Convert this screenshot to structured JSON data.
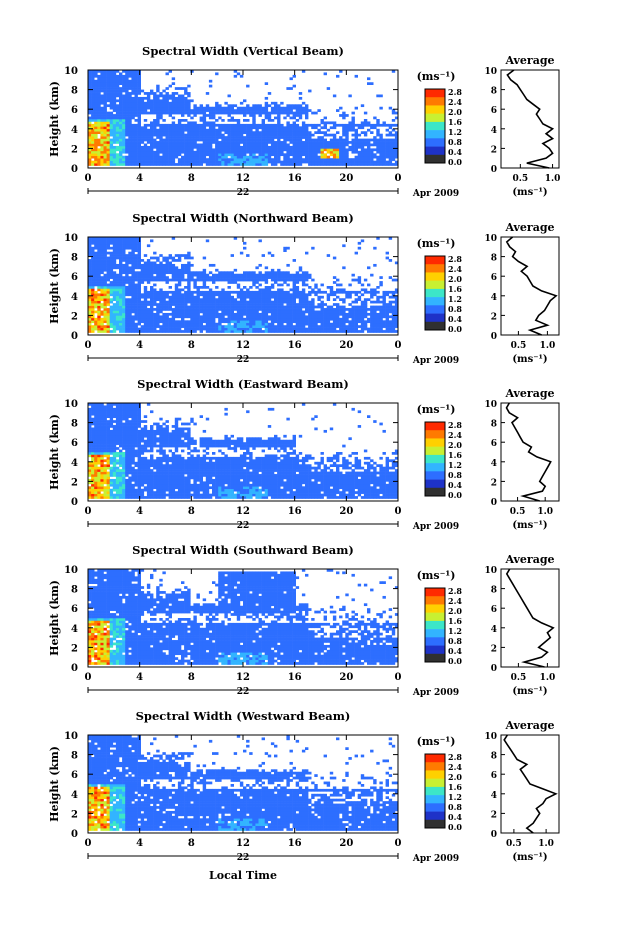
{
  "figure": {
    "xlabel": "Local Time",
    "date_suffix": "Apr 2009",
    "colorbar_unit": "(ms⁻¹)",
    "colorbar_ticks": [
      "2.8",
      "2.4",
      "2.0",
      "1.6",
      "1.2",
      "0.8",
      "0.4",
      "0.0"
    ],
    "colorbar_colors": [
      "#ff2a00",
      "#ff7a00",
      "#ffd000",
      "#c8f032",
      "#3ce6c8",
      "#32b4ff",
      "#2d6eff",
      "#1e32c8",
      "#303030"
    ]
  },
  "chart_data": [
    {
      "type": "heatmap",
      "title": "Spectral Width (Vertical Beam)",
      "ylabel": "Height (km)",
      "xlim": [
        0,
        24
      ],
      "ylim": [
        0,
        10
      ],
      "x_ticks": [
        "0",
        "4",
        "8",
        "12",
        "16",
        "20",
        "0"
      ],
      "y_ticks": [
        "0",
        "2",
        "4",
        "6",
        "8",
        "10"
      ],
      "day_label": "22",
      "profile": {
        "title": "Average",
        "xlabel": "(ms⁻¹)",
        "x_ticks": [
          "0.5",
          "1.0"
        ],
        "xlim": [
          0.2,
          1.1
        ],
        "heights": [
          0,
          0.5,
          1,
          1.5,
          2,
          2.5,
          3,
          3.5,
          4,
          4.5,
          5,
          5.5,
          6,
          6.5,
          7,
          7.5,
          8,
          8.5,
          9,
          9.5,
          10
        ],
        "values": [
          0.95,
          0.6,
          0.9,
          1.0,
          0.95,
          0.85,
          1.0,
          0.9,
          1.0,
          0.85,
          0.8,
          0.75,
          0.8,
          0.7,
          0.6,
          0.55,
          0.5,
          0.45,
          0.35,
          0.3,
          0.4
        ]
      }
    },
    {
      "type": "heatmap",
      "title": "Spectral Width (Northward Beam)",
      "ylabel": "Height (km)",
      "xlim": [
        0,
        24
      ],
      "ylim": [
        0,
        10
      ],
      "x_ticks": [
        "0",
        "4",
        "8",
        "12",
        "16",
        "20",
        "0"
      ],
      "y_ticks": [
        "0",
        "2",
        "4",
        "6",
        "8",
        "10"
      ],
      "day_label": "22",
      "profile": {
        "title": "Average",
        "xlabel": "(ms⁻¹)",
        "x_ticks": [
          "0.5",
          "1.0"
        ],
        "xlim": [
          0.2,
          1.2
        ],
        "heights": [
          0,
          0.5,
          1,
          1.5,
          2,
          2.5,
          3,
          3.5,
          4,
          4.5,
          5,
          5.5,
          6,
          6.5,
          7,
          7.5,
          8,
          8.5,
          9,
          9.5,
          10
        ],
        "values": [
          0.9,
          0.7,
          1.0,
          0.8,
          0.85,
          0.95,
          1.0,
          1.05,
          1.15,
          0.9,
          0.75,
          0.7,
          0.65,
          0.55,
          0.65,
          0.5,
          0.4,
          0.45,
          0.35,
          0.3,
          0.4
        ]
      }
    },
    {
      "type": "heatmap",
      "title": "Spectral Width (Eastward Beam)",
      "ylabel": "Height (km)",
      "xlim": [
        0,
        24
      ],
      "ylim": [
        0,
        10
      ],
      "x_ticks": [
        "0",
        "4",
        "8",
        "12",
        "16",
        "20",
        "0"
      ],
      "y_ticks": [
        "0",
        "2",
        "4",
        "6",
        "8",
        "10"
      ],
      "day_label": "22",
      "profile": {
        "title": "Average",
        "xlabel": "(ms⁻¹)",
        "x_ticks": [
          "0.5",
          "1.0"
        ],
        "xlim": [
          0.2,
          1.25
        ],
        "heights": [
          0,
          0.5,
          1,
          1.5,
          2,
          2.5,
          3,
          3.5,
          4,
          4.5,
          5,
          5.5,
          6,
          6.5,
          7,
          7.5,
          8,
          8.5,
          9,
          9.5,
          10
        ],
        "values": [
          0.9,
          0.6,
          0.95,
          1.0,
          0.9,
          0.95,
          1.0,
          1.05,
          1.1,
          0.85,
          0.7,
          0.75,
          0.6,
          0.55,
          0.5,
          0.45,
          0.4,
          0.5,
          0.35,
          0.3,
          0.35
        ]
      }
    },
    {
      "type": "heatmap",
      "title": "Spectral Width (Southward Beam)",
      "ylabel": "Height (km)",
      "xlim": [
        0,
        24
      ],
      "ylim": [
        0,
        10
      ],
      "x_ticks": [
        "0",
        "4",
        "8",
        "12",
        "16",
        "20",
        "0"
      ],
      "y_ticks": [
        "0",
        "2",
        "4",
        "6",
        "8",
        "10"
      ],
      "day_label": "22",
      "profile": {
        "title": "Average",
        "xlabel": "(ms⁻¹)",
        "x_ticks": [
          "0.5",
          "1.0"
        ],
        "xlim": [
          0.2,
          1.2
        ],
        "heights": [
          0,
          0.5,
          1,
          1.5,
          2,
          2.5,
          3,
          3.5,
          4,
          4.5,
          5,
          5.5,
          6,
          6.5,
          7,
          7.5,
          8,
          8.5,
          9,
          9.5,
          10
        ],
        "values": [
          0.95,
          0.6,
          0.9,
          1.0,
          0.85,
          0.95,
          1.05,
          1.0,
          1.1,
          0.9,
          0.75,
          0.7,
          0.65,
          0.6,
          0.55,
          0.5,
          0.45,
          0.4,
          0.35,
          0.3,
          0.35
        ]
      }
    },
    {
      "type": "heatmap",
      "title": "Spectral Width (Westward Beam)",
      "ylabel": "Height (km)",
      "xlim": [
        0,
        24
      ],
      "ylim": [
        0,
        10
      ],
      "x_ticks": [
        "0",
        "4",
        "8",
        "12",
        "16",
        "20",
        "0"
      ],
      "y_ticks": [
        "0",
        "2",
        "4",
        "6",
        "8",
        "10"
      ],
      "day_label": "22",
      "profile": {
        "title": "Average",
        "xlabel": "(ms⁻¹)",
        "x_ticks": [
          "0.5",
          "1.0"
        ],
        "xlim": [
          0.3,
          1.2
        ],
        "heights": [
          0,
          0.5,
          1,
          1.5,
          2,
          2.5,
          3,
          3.5,
          4,
          4.5,
          5,
          5.5,
          6,
          6.5,
          7,
          7.5,
          8,
          8.5,
          9,
          9.5,
          10
        ],
        "values": [
          0.8,
          0.7,
          0.8,
          0.85,
          0.9,
          0.85,
          0.95,
          1.0,
          1.15,
          0.95,
          0.75,
          0.7,
          0.65,
          0.6,
          0.7,
          0.55,
          0.5,
          0.45,
          0.4,
          0.35,
          0.4
        ]
      }
    }
  ]
}
